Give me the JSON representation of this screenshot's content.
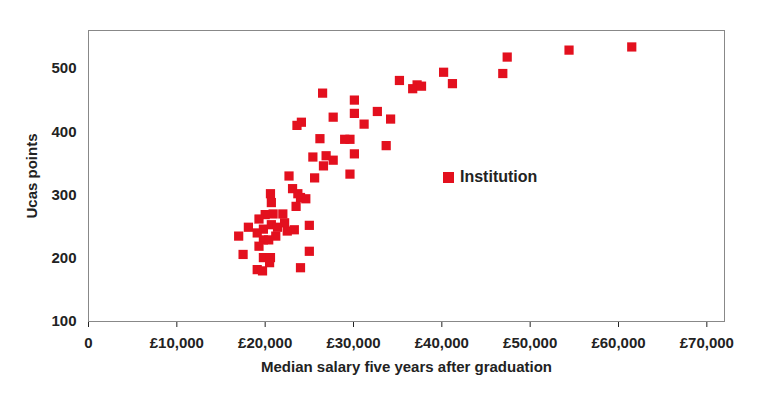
{
  "chart_data": {
    "type": "scatter",
    "xlabel": "Median salary five years after graduation",
    "ylabel": "Ucas points",
    "series": [
      {
        "name": "Institution",
        "color": "#e3101e",
        "marker": "square",
        "x": [
          61500,
          54400,
          47400,
          46900,
          40200,
          41200,
          37200,
          36700,
          37700,
          35200,
          34200,
          33700,
          32700,
          31200,
          30100,
          30100,
          30100,
          29600,
          29000,
          29600,
          26500,
          27700,
          26200,
          26900,
          27700,
          26600,
          25400,
          25600,
          24100,
          23600,
          23100,
          22700,
          24000,
          24600,
          23500,
          23300,
          22500,
          25000,
          25000,
          24000,
          20600,
          20700,
          20900,
          22000,
          20000,
          19300,
          19800,
          20700,
          21400,
          18100,
          19100,
          17000,
          19800,
          20400,
          19300,
          17500,
          19800,
          20600,
          20500,
          19100,
          19700,
          23700,
          22200,
          21200
        ],
        "values": [
          534,
          529,
          518,
          492,
          494,
          476,
          474,
          468,
          472,
          481,
          420,
          378,
          432,
          412,
          450,
          429,
          365,
          388,
          388,
          333,
          461,
          423,
          389,
          362,
          355,
          346,
          360,
          327,
          415,
          410,
          310,
          330,
          296,
          294,
          282,
          245,
          243,
          252,
          211,
          185,
          302,
          288,
          270,
          270,
          269,
          262,
          246,
          253,
          249,
          249,
          240,
          235,
          229,
          229,
          219,
          206,
          201,
          201,
          193,
          182,
          180,
          302,
          256,
          235
        ]
      }
    ],
    "xlim": [
      0,
      72000
    ],
    "ylim": [
      100,
      560
    ],
    "xticks": [
      0,
      {
        "value": 10000,
        "label": "£10,000"
      },
      {
        "value": 20000,
        "label": "£20,000"
      },
      {
        "value": 30000,
        "label": "£30,000"
      },
      {
        "value": 40000,
        "label": "£40,000"
      },
      {
        "value": 50000,
        "label": "£50,000"
      },
      {
        "value": 60000,
        "label": "£60,000"
      },
      {
        "value": 70000,
        "label": "£70,000"
      }
    ],
    "yticks": [
      100,
      200,
      300,
      400,
      500
    ],
    "grid": false,
    "legend": "right"
  }
}
